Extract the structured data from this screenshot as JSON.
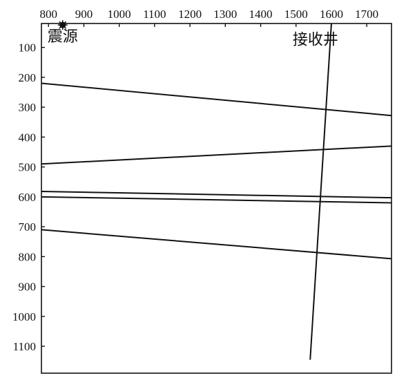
{
  "chart_data": {
    "type": "line",
    "title": "",
    "xlabel": "",
    "ylabel": "",
    "xlim": [
      780,
      1770
    ],
    "ylim": [
      1190,
      20
    ],
    "x_ticks": [
      800,
      900,
      1000,
      1100,
      1200,
      1300,
      1400,
      1500,
      1600,
      1700
    ],
    "y_ticks": [
      100,
      200,
      300,
      400,
      500,
      600,
      700,
      800,
      900,
      1000,
      1100
    ],
    "annotations": [
      {
        "text": "震源",
        "x": 840,
        "y": 80
      },
      {
        "text": "接收井",
        "x": 1555,
        "y": 90
      }
    ],
    "source_point": {
      "x": 840,
      "y": 25
    },
    "series": [
      {
        "points": [
          [
            780,
            220
          ],
          [
            1770,
            328
          ]
        ]
      },
      {
        "points": [
          [
            780,
            490
          ],
          [
            1770,
            430
          ]
        ]
      },
      {
        "points": [
          [
            780,
            582
          ],
          [
            1770,
            603
          ]
        ]
      },
      {
        "points": [
          [
            780,
            600
          ],
          [
            1770,
            620
          ]
        ]
      },
      {
        "points": [
          [
            780,
            710
          ],
          [
            1770,
            807
          ]
        ]
      },
      {
        "points": [
          [
            1600,
            20
          ],
          [
            1540,
            1145
          ]
        ]
      }
    ],
    "grid": false,
    "legend": "none",
    "line_color": "#111111"
  }
}
